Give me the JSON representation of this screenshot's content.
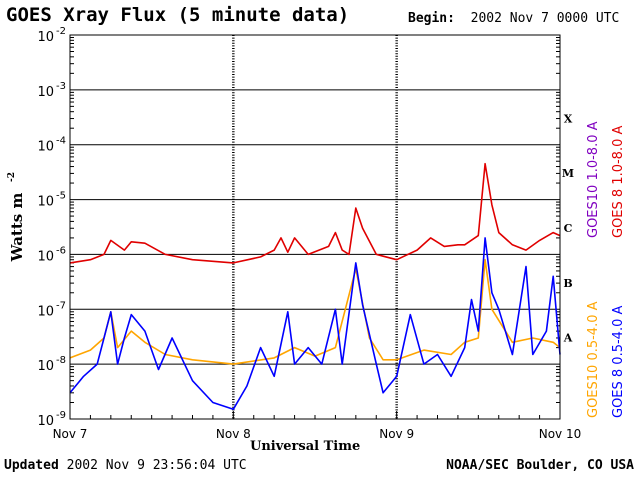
{
  "header": {
    "title": "GOES Xray Flux (5 minute data)",
    "begin_label": "Begin:",
    "begin_value": "2002 Nov 7 0000 UTC"
  },
  "footer": {
    "updated_label": "Updated",
    "updated_value": "2002 Nov  9 23:56:04 UTC",
    "org": "NOAA/SEC Boulder, CO USA"
  },
  "colors": {
    "goes10_long": "#8000c0",
    "goes8_long": "#e00000",
    "goes10_short": "#ffa500",
    "goes8_short": "#0000ff",
    "background": "#ffffff",
    "grid": "#000000"
  },
  "chart_data": {
    "type": "line",
    "title": "GOES Xray Flux (5 minute data)",
    "xlabel": "Universal Time",
    "ylabel": "Watts m",
    "ylabel_sup": "-2",
    "x_ticks": [
      "Nov 7",
      "Nov 8",
      "Nov 9",
      "Nov 10"
    ],
    "xlim": [
      "2002-11-07T00:00",
      "2002-11-10T00:00"
    ],
    "yscale": "log",
    "ylim": [
      1e-09,
      0.01
    ],
    "y_ticks": [
      {
        "base": "10",
        "exp": "-2"
      },
      {
        "base": "10",
        "exp": "-3"
      },
      {
        "base": "10",
        "exp": "-4"
      },
      {
        "base": "10",
        "exp": "-5"
      },
      {
        "base": "10",
        "exp": "-6"
      },
      {
        "base": "10",
        "exp": "-7"
      },
      {
        "base": "10",
        "exp": "-8"
      },
      {
        "base": "10",
        "exp": "-9"
      }
    ],
    "flare_classes": [
      "X",
      "M",
      "C",
      "B",
      "A"
    ],
    "grid": true,
    "legend_position": "right",
    "series": [
      {
        "name": "GOES10 1.0-8.0 A",
        "color": "#8000c0",
        "points": []
      },
      {
        "name": "GOES 8 1.0-8.0 A",
        "color": "#e00000",
        "points": [
          [
            "2002-11-07T00:00",
            7e-07
          ],
          [
            "2002-11-07T03:00",
            8e-07
          ],
          [
            "2002-11-07T05:00",
            1e-06
          ],
          [
            "2002-11-07T06:00",
            1.8e-06
          ],
          [
            "2002-11-07T08:00",
            1.2e-06
          ],
          [
            "2002-11-07T09:00",
            1.7e-06
          ],
          [
            "2002-11-07T11:00",
            1.6e-06
          ],
          [
            "2002-11-07T14:00",
            1e-06
          ],
          [
            "2002-11-07T18:00",
            8e-07
          ],
          [
            "2002-11-08T00:00",
            7e-07
          ],
          [
            "2002-11-08T04:00",
            9e-07
          ],
          [
            "2002-11-08T06:00",
            1.2e-06
          ],
          [
            "2002-11-08T07:00",
            2e-06
          ],
          [
            "2002-11-08T08:00",
            1.1e-06
          ],
          [
            "2002-11-08T09:00",
            2e-06
          ],
          [
            "2002-11-08T11:00",
            1e-06
          ],
          [
            "2002-11-08T14:00",
            1.4e-06
          ],
          [
            "2002-11-08T15:00",
            2.5e-06
          ],
          [
            "2002-11-08T16:00",
            1.2e-06
          ],
          [
            "2002-11-08T17:00",
            1e-06
          ],
          [
            "2002-11-08T18:00",
            7e-06
          ],
          [
            "2002-11-08T19:00",
            3e-06
          ],
          [
            "2002-11-08T21:00",
            1e-06
          ],
          [
            "2002-11-09T00:00",
            8e-07
          ],
          [
            "2002-11-09T03:00",
            1.2e-06
          ],
          [
            "2002-11-09T05:00",
            2e-06
          ],
          [
            "2002-11-09T07:00",
            1.4e-06
          ],
          [
            "2002-11-09T09:00",
            1.5e-06
          ],
          [
            "2002-11-09T10:00",
            1.5e-06
          ],
          [
            "2002-11-09T12:00",
            2.2e-06
          ],
          [
            "2002-11-09T13:00",
            4.5e-05
          ],
          [
            "2002-11-09T14:00",
            8e-06
          ],
          [
            "2002-11-09T15:00",
            2.5e-06
          ],
          [
            "2002-11-09T17:00",
            1.5e-06
          ],
          [
            "2002-11-09T19:00",
            1.2e-06
          ],
          [
            "2002-11-09T21:00",
            1.8e-06
          ],
          [
            "2002-11-09T23:00",
            2.5e-06
          ],
          [
            "2002-11-10T00:00",
            2.2e-06
          ]
        ]
      },
      {
        "name": "GOES10 0.5-4.0 A",
        "color": "#ffa500",
        "points": [
          [
            "2002-11-07T00:00",
            1.3e-08
          ],
          [
            "2002-11-07T03:00",
            1.8e-08
          ],
          [
            "2002-11-07T05:00",
            3e-08
          ],
          [
            "2002-11-07T06:00",
            9e-08
          ],
          [
            "2002-11-07T07:00",
            2e-08
          ],
          [
            "2002-11-07T09:00",
            4e-08
          ],
          [
            "2002-11-07T11:00",
            2.5e-08
          ],
          [
            "2002-11-07T14:00",
            1.5e-08
          ],
          [
            "2002-11-07T18:00",
            1.2e-08
          ],
          [
            "2002-11-08T00:00",
            1e-08
          ],
          [
            "2002-11-08T06:00",
            1.3e-08
          ],
          [
            "2002-11-08T09:00",
            2e-08
          ],
          [
            "2002-11-08T12:00",
            1.4e-08
          ],
          [
            "2002-11-08T15:00",
            2e-08
          ],
          [
            "2002-11-08T18:00",
            5.5e-07
          ],
          [
            "2002-11-08T20:00",
            3e-08
          ],
          [
            "2002-11-08T22:00",
            1.2e-08
          ],
          [
            "2002-11-09T00:00",
            1.2e-08
          ],
          [
            "2002-11-09T04:00",
            1.8e-08
          ],
          [
            "2002-11-09T08:00",
            1.5e-08
          ],
          [
            "2002-11-09T10:00",
            2.5e-08
          ],
          [
            "2002-11-09T12:00",
            3e-08
          ],
          [
            "2002-11-09T13:00",
            8e-07
          ],
          [
            "2002-11-09T14:00",
            1e-07
          ],
          [
            "2002-11-09T17:00",
            2.5e-08
          ],
          [
            "2002-11-09T20:00",
            3e-08
          ],
          [
            "2002-11-09T23:00",
            2.5e-08
          ],
          [
            "2002-11-10T00:00",
            2e-08
          ]
        ]
      },
      {
        "name": "GOES 8 0.5-4.0 A",
        "color": "#0000ff",
        "points": [
          [
            "2002-11-07T00:00",
            3e-09
          ],
          [
            "2002-11-07T02:00",
            6e-09
          ],
          [
            "2002-11-07T04:00",
            1e-08
          ],
          [
            "2002-11-07T05:00",
            3e-08
          ],
          [
            "2002-11-07T06:00",
            9e-08
          ],
          [
            "2002-11-07T07:00",
            1e-08
          ],
          [
            "2002-11-07T08:00",
            3e-08
          ],
          [
            "2002-11-07T09:00",
            8e-08
          ],
          [
            "2002-11-07T11:00",
            4e-08
          ],
          [
            "2002-11-07T13:00",
            8e-09
          ],
          [
            "2002-11-07T15:00",
            3e-08
          ],
          [
            "2002-11-07T18:00",
            5e-09
          ],
          [
            "2002-11-07T21:00",
            2e-09
          ],
          [
            "2002-11-08T00:00",
            1.5e-09
          ],
          [
            "2002-11-08T02:00",
            4e-09
          ],
          [
            "2002-11-08T04:00",
            2e-08
          ],
          [
            "2002-11-08T06:00",
            6e-09
          ],
          [
            "2002-11-08T08:00",
            9e-08
          ],
          [
            "2002-11-08T09:00",
            1e-08
          ],
          [
            "2002-11-08T11:00",
            2e-08
          ],
          [
            "2002-11-08T13:00",
            1e-08
          ],
          [
            "2002-11-08T15:00",
            1e-07
          ],
          [
            "2002-11-08T16:00",
            1e-08
          ],
          [
            "2002-11-08T18:00",
            7e-07
          ],
          [
            "2002-11-08T19:00",
            1.2e-07
          ],
          [
            "2002-11-08T21:00",
            1e-08
          ],
          [
            "2002-11-08T22:00",
            3e-09
          ],
          [
            "2002-11-09T00:00",
            6e-09
          ],
          [
            "2002-11-09T02:00",
            8e-08
          ],
          [
            "2002-11-09T04:00",
            1e-08
          ],
          [
            "2002-11-09T06:00",
            1.5e-08
          ],
          [
            "2002-11-09T08:00",
            6e-09
          ],
          [
            "2002-11-09T10:00",
            2e-08
          ],
          [
            "2002-11-09T11:00",
            1.5e-07
          ],
          [
            "2002-11-09T12:00",
            4e-08
          ],
          [
            "2002-11-09T13:00",
            2e-06
          ],
          [
            "2002-11-09T14:00",
            2e-07
          ],
          [
            "2002-11-09T15:00",
            1e-07
          ],
          [
            "2002-11-09T17:00",
            1.5e-08
          ],
          [
            "2002-11-09T19:00",
            6e-07
          ],
          [
            "2002-11-09T20:00",
            1.5e-08
          ],
          [
            "2002-11-09T22:00",
            4e-08
          ],
          [
            "2002-11-09T23:00",
            4e-07
          ],
          [
            "2002-11-10T00:00",
            1.5e-08
          ]
        ]
      }
    ]
  }
}
